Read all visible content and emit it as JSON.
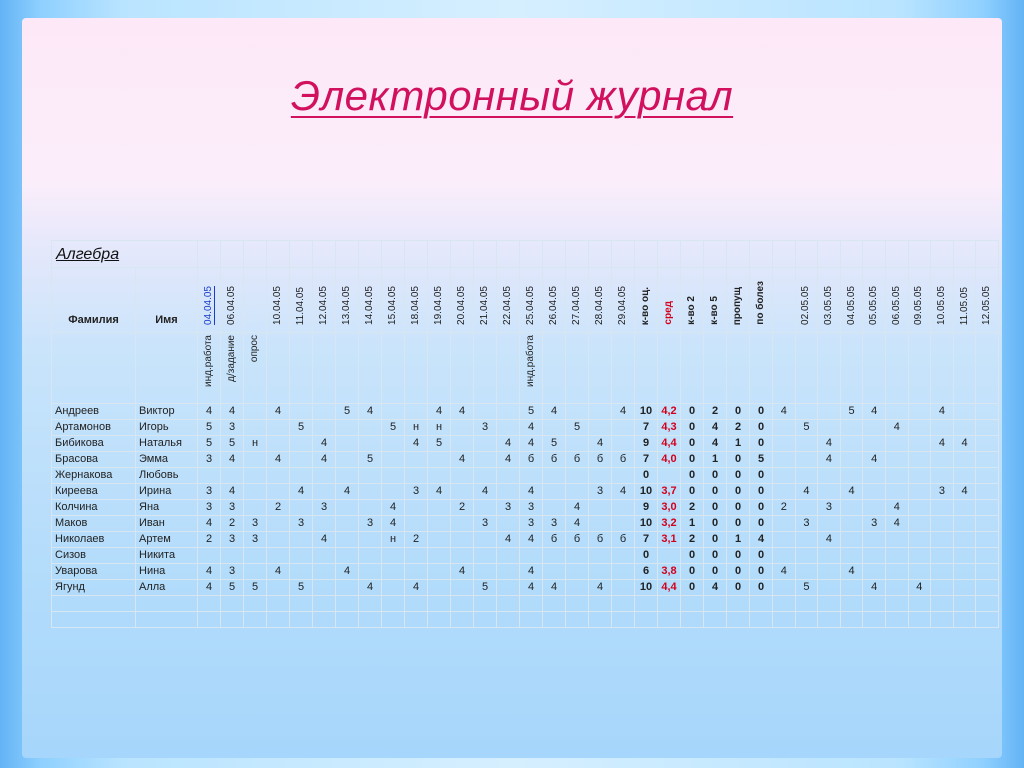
{
  "title": "Электронный журнал",
  "subject": "Алгебра",
  "headers": {
    "surname": "Фамилия",
    "name": "Имя",
    "dates": [
      "04.04.05",
      "06.04.05",
      "",
      "10.04.05",
      "11.04.05",
      "12.04.05",
      "13.04.05",
      "14.04.05",
      "15.04.05",
      "18.04.05",
      "19.04.05",
      "20.04.05",
      "21.04.05",
      "22.04.05",
      "25.04.05",
      "26.04.05",
      "27.04.05",
      "28.04.05",
      "29.04.05"
    ],
    "summary": [
      "к-во оц.",
      "сред",
      "к-во 2",
      "к-во 5",
      "пропущ",
      "по болез"
    ],
    "dates_after": [
      "",
      "02.05.05",
      "03.05.05",
      "04.05.05",
      "05.05.05",
      "06.05.05",
      "09.05.05",
      "10.05.05",
      "11.05.05",
      "12.05.05"
    ],
    "types": [
      "инд.работа",
      "д/задание",
      "опрос",
      "",
      "",
      "",
      "",
      "",
      "",
      "",
      "",
      "",
      "",
      "",
      "инд.работа",
      "",
      "",
      "",
      ""
    ]
  },
  "students": [
    {
      "surname": "Андреев",
      "name": "Виктор",
      "marks": [
        "4",
        "4",
        "",
        "4",
        "",
        "",
        "5",
        "4",
        "",
        "",
        "4",
        "4",
        "",
        "",
        "5",
        "4",
        "",
        "",
        "4"
      ],
      "count": "10",
      "avg": "4,2",
      "k2": "0",
      "k5": "2",
      "missed": "0",
      "ill": "0",
      "after": [
        "4",
        "",
        "",
        "5",
        "4",
        "",
        "",
        "4",
        ""
      ]
    },
    {
      "surname": "Артамонов",
      "name": "Игорь",
      "marks": [
        "5",
        "3",
        "",
        "",
        "5",
        "",
        "",
        "",
        "5",
        "н",
        "н",
        "",
        "3",
        "",
        "4",
        "",
        "5",
        "",
        ""
      ],
      "count": "7",
      "avg": "4,3",
      "k2": "0",
      "k5": "4",
      "missed": "2",
      "ill": "0",
      "after": [
        "",
        "5",
        "",
        "",
        "",
        "4",
        "",
        "",
        ""
      ]
    },
    {
      "surname": "Бибикова",
      "name": "Наталья",
      "marks": [
        "5",
        "5",
        "н",
        "",
        "",
        "4",
        "",
        "",
        "",
        "4",
        "5",
        "",
        "",
        "4",
        "4",
        "5",
        "",
        "4",
        ""
      ],
      "count": "9",
      "avg": "4,4",
      "k2": "0",
      "k5": "4",
      "missed": "1",
      "ill": "0",
      "after": [
        "",
        "",
        "4",
        "",
        "",
        "",
        "",
        "4",
        "4"
      ]
    },
    {
      "surname": "Брасова",
      "name": "Эмма",
      "marks": [
        "3",
        "4",
        "",
        "4",
        "",
        "4",
        "",
        "5",
        "",
        "",
        "",
        "4",
        "",
        "4",
        "б",
        "б",
        "б",
        "б",
        "б"
      ],
      "count": "7",
      "avg": "4,0",
      "k2": "0",
      "k5": "1",
      "missed": "0",
      "ill": "5",
      "after": [
        "",
        "",
        "4",
        "",
        "4",
        "",
        "",
        "",
        ""
      ]
    },
    {
      "surname": "Жернакова",
      "name": "Любовь",
      "marks": [
        "",
        "",
        "",
        "",
        "",
        "",
        "",
        "",
        "",
        "",
        "",
        "",
        "",
        "",
        "",
        "",
        "",
        "",
        ""
      ],
      "count": "0",
      "avg": "",
      "k2": "0",
      "k5": "0",
      "missed": "0",
      "ill": "0",
      "after": [
        "",
        "",
        "",
        "",
        "",
        "",
        "",
        "",
        ""
      ]
    },
    {
      "surname": "Киреева",
      "name": "Ирина",
      "marks": [
        "3",
        "4",
        "",
        "",
        "4",
        "",
        "4",
        "",
        "",
        "3",
        "4",
        "",
        "4",
        "",
        "4",
        "",
        "",
        "3",
        "4"
      ],
      "count": "10",
      "avg": "3,7",
      "k2": "0",
      "k5": "0",
      "missed": "0",
      "ill": "0",
      "after": [
        "",
        "4",
        "",
        "4",
        "",
        "",
        "",
        "3",
        "4"
      ]
    },
    {
      "surname": "Колчина",
      "name": "Яна",
      "marks": [
        "3",
        "3",
        "",
        "2",
        "",
        "3",
        "",
        "",
        "4",
        "",
        "",
        "2",
        "",
        "3",
        "3",
        "",
        "4",
        "",
        ""
      ],
      "count": "9",
      "avg": "3,0",
      "k2": "2",
      "k5": "0",
      "missed": "0",
      "ill": "0",
      "after": [
        "2",
        "",
        "3",
        "",
        "",
        "4",
        "",
        "",
        ""
      ]
    },
    {
      "surname": "Маков",
      "name": "Иван",
      "marks": [
        "4",
        "2",
        "3",
        "",
        "3",
        "",
        "",
        "3",
        "4",
        "",
        "",
        "",
        "3",
        "",
        "3",
        "3",
        "4",
        "",
        ""
      ],
      "count": "10",
      "avg": "3,2",
      "k2": "1",
      "k5": "0",
      "missed": "0",
      "ill": "0",
      "after": [
        "",
        "3",
        "",
        "",
        "3",
        "4",
        "",
        "",
        ""
      ]
    },
    {
      "surname": "Николаев",
      "name": "Артем",
      "marks": [
        "2",
        "3",
        "3",
        "",
        "",
        "4",
        "",
        "",
        "н",
        "2",
        "",
        "",
        "",
        "4",
        "4",
        "б",
        "б",
        "б",
        "б"
      ],
      "count": "7",
      "avg": "3,1",
      "k2": "2",
      "k5": "0",
      "missed": "1",
      "ill": "4",
      "after": [
        "",
        "",
        "4",
        "",
        "",
        "",
        "",
        "",
        ""
      ]
    },
    {
      "surname": "Сизов",
      "name": "Никита",
      "marks": [
        "",
        "",
        "",
        "",
        "",
        "",
        "",
        "",
        "",
        "",
        "",
        "",
        "",
        "",
        "",
        "",
        "",
        "",
        ""
      ],
      "count": "0",
      "avg": "",
      "k2": "0",
      "k5": "0",
      "missed": "0",
      "ill": "0",
      "after": [
        "",
        "",
        "",
        "",
        "",
        "",
        "",
        "",
        ""
      ]
    },
    {
      "surname": "Уварова",
      "name": "Нина",
      "marks": [
        "4",
        "3",
        "",
        "4",
        "",
        "",
        "4",
        "",
        "",
        "",
        "",
        "4",
        "",
        "",
        "4",
        "",
        "",
        "",
        ""
      ],
      "count": "6",
      "avg": "3,8",
      "k2": "0",
      "k5": "0",
      "missed": "0",
      "ill": "0",
      "after": [
        "4",
        "",
        "",
        "4",
        "",
        "",
        "",
        "",
        ""
      ]
    },
    {
      "surname": "Ягунд",
      "name": "Алла",
      "marks": [
        "4",
        "5",
        "5",
        "",
        "5",
        "",
        "",
        "4",
        "",
        "4",
        "",
        "",
        "5",
        "",
        "4",
        "4",
        "",
        "4",
        ""
      ],
      "count": "10",
      "avg": "4,4",
      "k2": "0",
      "k5": "4",
      "missed": "0",
      "ill": "0",
      "after": [
        "",
        "5",
        "",
        "",
        "4",
        "",
        "4",
        "",
        ""
      ]
    }
  ],
  "empty_rows": 2
}
